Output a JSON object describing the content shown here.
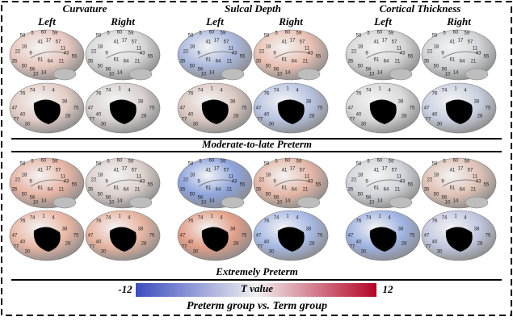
{
  "columns": [
    {
      "title": "Curvature",
      "hemispheres": [
        "Left",
        "Right"
      ]
    },
    {
      "title": "Sulcal Depth",
      "hemispheres": [
        "Left",
        "Right"
      ]
    },
    {
      "title": "Cortical Thickness",
      "hemispheres": [
        "Left",
        "Right"
      ]
    }
  ],
  "groups": [
    "Moderate-to-late Preterm",
    "Extremely Preterm"
  ],
  "colorbar": {
    "label": "T value",
    "min": -12,
    "max": 12
  },
  "footer": "Preterm group vs. Term group",
  "region_labels": {
    "lateral": [
      "58",
      "5",
      "60",
      "59",
      "41",
      "17",
      "57",
      "11",
      "18",
      "22",
      "43",
      "9",
      "55",
      "21",
      "61",
      "64",
      "35",
      "50",
      "56",
      "14",
      "10"
    ],
    "medial": [
      "76",
      "74",
      "1",
      "4",
      "47",
      "75",
      "40",
      "77",
      "30",
      "28",
      "38"
    ]
  }
}
